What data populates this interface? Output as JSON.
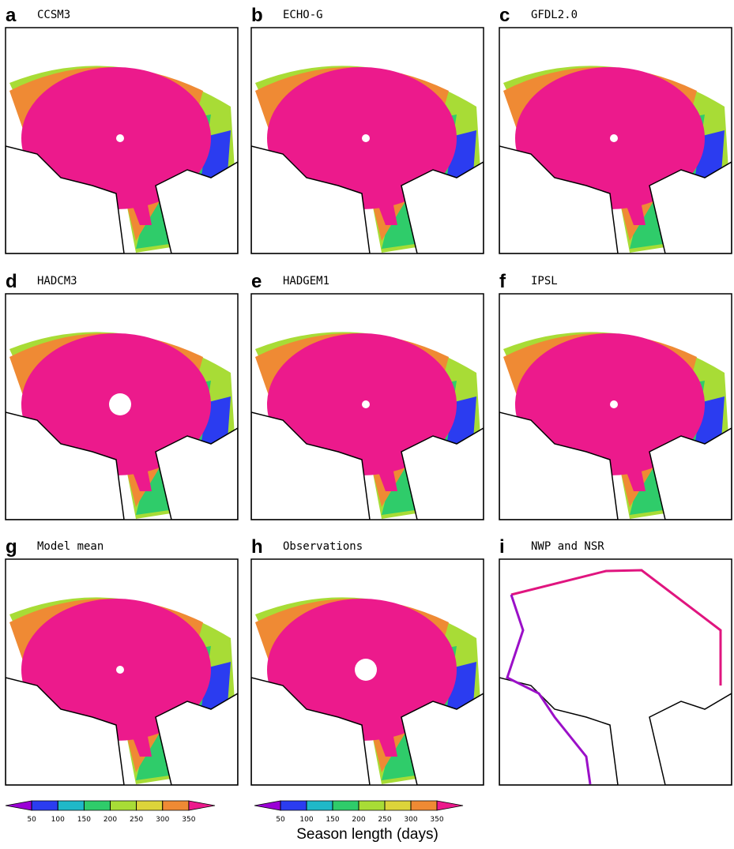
{
  "panels": [
    {
      "letter": "a",
      "title": "CCSM3"
    },
    {
      "letter": "b",
      "title": "ECHO-G"
    },
    {
      "letter": "c",
      "title": "GFDL2.0"
    },
    {
      "letter": "d",
      "title": "HADCM3"
    },
    {
      "letter": "e",
      "title": "HADGEM1"
    },
    {
      "letter": "f",
      "title": "IPSL"
    },
    {
      "letter": "g",
      "title": "Model mean"
    },
    {
      "letter": "h",
      "title": "Observations"
    },
    {
      "letter": "i",
      "title": "NWP and NSR"
    }
  ],
  "colorbar": {
    "ticks": [
      50,
      100,
      150,
      200,
      250,
      300,
      350
    ],
    "colors": [
      "#9b00d6",
      "#2b3cf0",
      "#1fb8c8",
      "#2fcc6a",
      "#a8dc36",
      "#dcd43a",
      "#ef8a34",
      "#ec1a8c"
    ],
    "label": "Season length (days)"
  }
}
